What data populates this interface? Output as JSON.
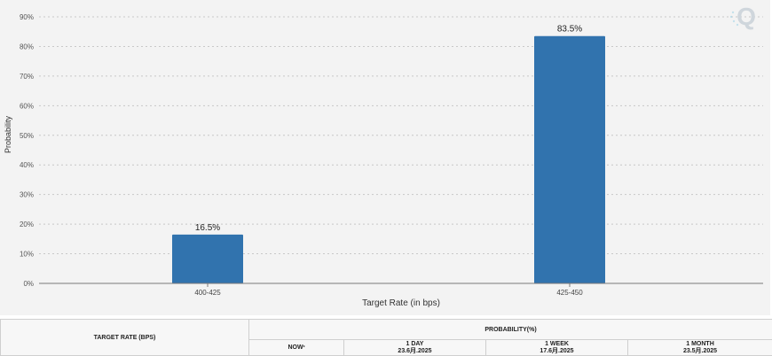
{
  "chart_data": {
    "type": "bar",
    "categories": [
      "400-425",
      "425-450"
    ],
    "values": [
      16.5,
      83.5
    ],
    "data_labels": [
      "16.5%",
      "83.5%"
    ],
    "xlabel": "Target Rate (in bps)",
    "ylabel": "Probability",
    "ylim": [
      0,
      90
    ],
    "yticks": [
      0,
      10,
      20,
      30,
      40,
      50,
      60,
      70,
      80,
      90
    ],
    "ytick_labels": [
      "0%",
      "10%",
      "20%",
      "30%",
      "40%",
      "50%",
      "60%",
      "70%",
      "80%",
      "90%"
    ],
    "grid": true,
    "legend": "none",
    "bar_color": "#3173ae"
  },
  "logo": {
    "text": "Q",
    "icon": "q-logo-icon",
    "color": "#cfd6dc"
  },
  "table": {
    "target_rate_header": "TARGET RATE (BPS)",
    "probability_header": "PROBABILITY(%)",
    "columns": [
      {
        "label": "NOW",
        "marker": "*",
        "date": ""
      },
      {
        "label": "1 DAY",
        "marker": "",
        "date": "23.6月.2025"
      },
      {
        "label": "1 WEEK",
        "marker": "",
        "date": "17.6月.2025"
      },
      {
        "label": "1 MONTH",
        "marker": "",
        "date": "23.5月.2025"
      }
    ]
  }
}
